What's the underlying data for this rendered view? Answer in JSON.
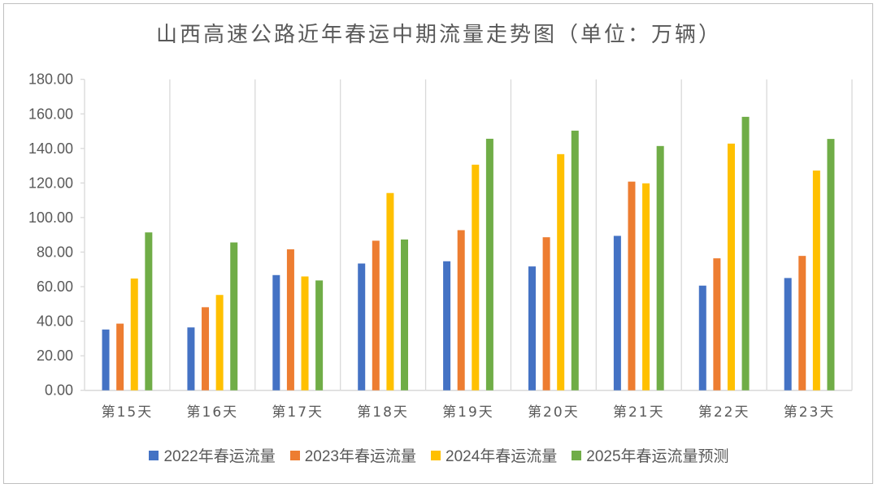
{
  "chart_data": {
    "type": "bar",
    "title": "山西高速公路近年春运中期流量走势图（单位：万辆）",
    "categories": [
      "第15天",
      "第16天",
      "第17天",
      "第18天",
      "第19天",
      "第20天",
      "第21天",
      "第22天",
      "第23天"
    ],
    "series": [
      {
        "name": "2022年春运流量",
        "color": "#4472c4",
        "values": [
          35.2,
          36.4,
          66.7,
          73.4,
          74.7,
          71.7,
          89.4,
          60.6,
          65.0
        ]
      },
      {
        "name": "2023年春运流量",
        "color": "#ed7d31",
        "values": [
          38.6,
          48.1,
          81.6,
          86.6,
          92.7,
          88.6,
          120.8,
          76.4,
          77.8
        ]
      },
      {
        "name": "2024年春运流量",
        "color": "#ffc000",
        "values": [
          64.7,
          55.2,
          65.9,
          114.2,
          130.6,
          136.7,
          119.8,
          142.8,
          127.2
        ]
      },
      {
        "name": "2025年春运流量预测",
        "color": "#70ad47",
        "values": [
          91.4,
          85.6,
          63.6,
          87.3,
          145.6,
          150.3,
          141.4,
          158.3,
          145.5
        ]
      }
    ],
    "ylim": [
      0,
      180
    ],
    "yticks": [
      "0.00",
      "20.00",
      "40.00",
      "60.00",
      "80.00",
      "100.00",
      "120.00",
      "140.00",
      "160.00",
      "180.00"
    ],
    "grid": "vertical category separators",
    "legend": "bottom"
  }
}
